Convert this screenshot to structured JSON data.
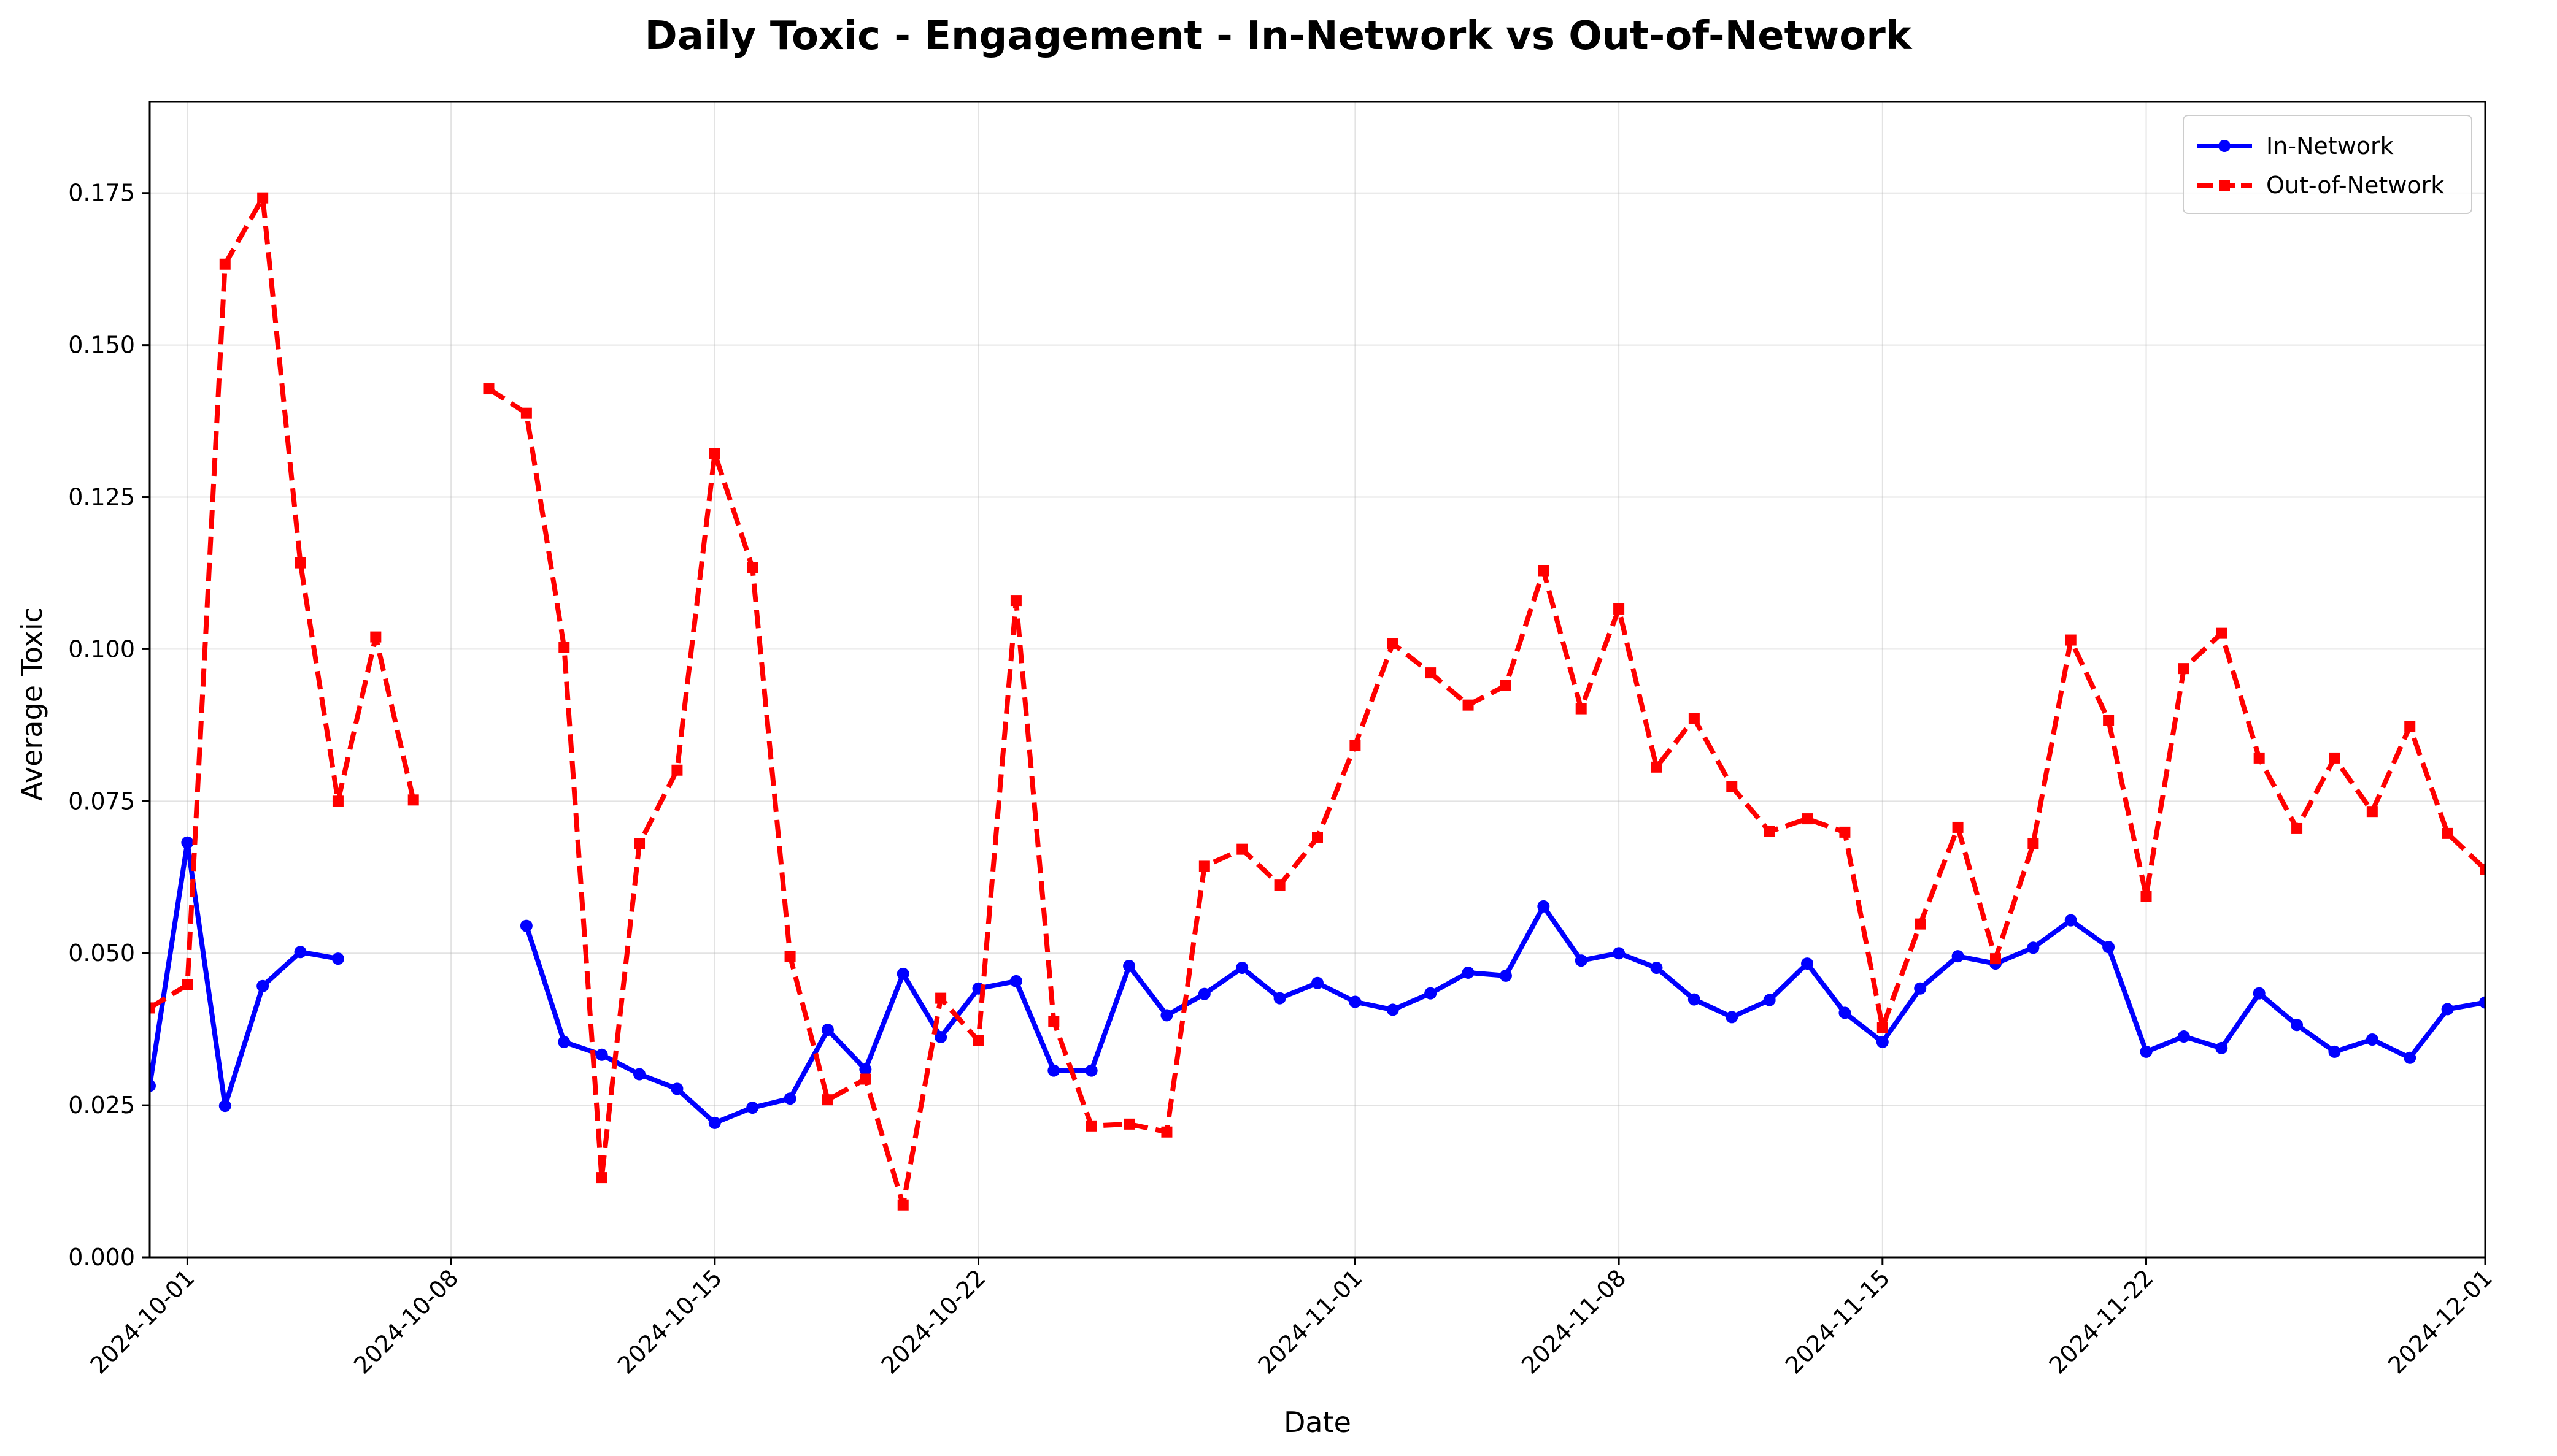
{
  "chart_data": {
    "type": "line",
    "title": "Daily Toxic - Engagement - In-Network vs Out-of-Network",
    "xlabel": "Date",
    "ylabel": "Average Toxic",
    "xlim": [
      "2024-09-30",
      "2024-12-01"
    ],
    "ylim": [
      0,
      0.19
    ],
    "grid": true,
    "legend_position": "top-right",
    "x_ticks": [
      "2024-10-01",
      "2024-10-08",
      "2024-10-15",
      "2024-10-22",
      "2024-11-01",
      "2024-11-08",
      "2024-11-15",
      "2024-11-22",
      "2024-12-01"
    ],
    "y_ticks": [
      "0.000",
      "0.025",
      "0.050",
      "0.075",
      "0.100",
      "0.125",
      "0.150",
      "0.175"
    ],
    "series": [
      {
        "name": "In-Network",
        "color": "#0000ff",
        "style": "solid",
        "marker": "circle",
        "points": [
          [
            "2024-09-30",
            0.0282
          ],
          [
            "2024-10-01",
            0.0682
          ],
          [
            "2024-10-02",
            0.0249
          ],
          [
            "2024-10-03",
            0.0446
          ],
          [
            "2024-10-04",
            0.0502
          ],
          [
            "2024-10-05",
            0.0491
          ],
          [
            "2024-10-10",
            0.0545
          ],
          [
            "2024-10-11",
            0.0354
          ],
          [
            "2024-10-12",
            0.0333
          ],
          [
            "2024-10-13",
            0.0301
          ],
          [
            "2024-10-14",
            0.0277
          ],
          [
            "2024-10-15",
            0.0221
          ],
          [
            "2024-10-16",
            0.0246
          ],
          [
            "2024-10-17",
            0.0261
          ],
          [
            "2024-10-18",
            0.0374
          ],
          [
            "2024-10-19",
            0.0309
          ],
          [
            "2024-10-20",
            0.0466
          ],
          [
            "2024-10-21",
            0.0362
          ],
          [
            "2024-10-22",
            0.0442
          ],
          [
            "2024-10-23",
            0.0454
          ],
          [
            "2024-10-24",
            0.0307
          ],
          [
            "2024-10-25",
            0.0307
          ],
          [
            "2024-10-26",
            0.0479
          ],
          [
            "2024-10-27",
            0.0398
          ],
          [
            "2024-10-28",
            0.0433
          ],
          [
            "2024-10-29",
            0.0476
          ],
          [
            "2024-10-30",
            0.0426
          ],
          [
            "2024-10-31",
            0.0451
          ],
          [
            "2024-11-01",
            0.042
          ],
          [
            "2024-11-02",
            0.0407
          ],
          [
            "2024-11-03",
            0.0434
          ],
          [
            "2024-11-04",
            0.0468
          ],
          [
            "2024-11-05",
            0.0463
          ],
          [
            "2024-11-06",
            0.0577
          ],
          [
            "2024-11-07",
            0.0488
          ],
          [
            "2024-11-08",
            0.05
          ],
          [
            "2024-11-09",
            0.0476
          ],
          [
            "2024-11-10",
            0.0424
          ],
          [
            "2024-11-11",
            0.0395
          ],
          [
            "2024-11-12",
            0.0423
          ],
          [
            "2024-11-13",
            0.0483
          ],
          [
            "2024-11-14",
            0.0402
          ],
          [
            "2024-11-15",
            0.0354
          ],
          [
            "2024-11-16",
            0.0442
          ],
          [
            "2024-11-17",
            0.0495
          ],
          [
            "2024-11-18",
            0.0483
          ],
          [
            "2024-11-19",
            0.0509
          ],
          [
            "2024-11-20",
            0.0554
          ],
          [
            "2024-11-21",
            0.051
          ],
          [
            "2024-11-22",
            0.0338
          ],
          [
            "2024-11-23",
            0.0363
          ],
          [
            "2024-11-24",
            0.0344
          ],
          [
            "2024-11-25",
            0.0434
          ],
          [
            "2024-11-26",
            0.0382
          ],
          [
            "2024-11-27",
            0.0338
          ],
          [
            "2024-11-28",
            0.0358
          ],
          [
            "2024-11-29",
            0.0328
          ],
          [
            "2024-11-30",
            0.0408
          ],
          [
            "2024-12-01",
            0.0419
          ]
        ]
      },
      {
        "name": "Out-of-Network",
        "color": "#ff0000",
        "style": "dashed",
        "marker": "square",
        "points": [
          [
            "2024-09-30",
            0.041
          ],
          [
            "2024-10-01",
            0.0448
          ],
          [
            "2024-10-02",
            0.1633
          ],
          [
            "2024-10-03",
            0.1742
          ],
          [
            "2024-10-04",
            0.1142
          ],
          [
            "2024-10-05",
            0.075
          ],
          [
            "2024-10-06",
            0.102
          ],
          [
            "2024-10-07",
            0.0752
          ],
          [
            "2024-10-09",
            0.1428
          ],
          [
            "2024-10-10",
            0.1388
          ],
          [
            "2024-10-11",
            0.1003
          ],
          [
            "2024-10-12",
            0.0131
          ],
          [
            "2024-10-13",
            0.068
          ],
          [
            "2024-10-14",
            0.0801
          ],
          [
            "2024-10-15",
            0.1322
          ],
          [
            "2024-10-16",
            0.1134
          ],
          [
            "2024-10-17",
            0.0495
          ],
          [
            "2024-10-18",
            0.0259
          ],
          [
            "2024-10-19",
            0.0293
          ],
          [
            "2024-10-20",
            0.0086
          ],
          [
            "2024-10-21",
            0.0426
          ],
          [
            "2024-10-22",
            0.0356
          ],
          [
            "2024-10-23",
            0.108
          ],
          [
            "2024-10-24",
            0.0388
          ],
          [
            "2024-10-25",
            0.0216
          ],
          [
            "2024-10-26",
            0.0219
          ],
          [
            "2024-10-27",
            0.0206
          ],
          [
            "2024-10-28",
            0.0643
          ],
          [
            "2024-10-29",
            0.0671
          ],
          [
            "2024-10-30",
            0.0612
          ],
          [
            "2024-10-31",
            0.069
          ],
          [
            "2024-11-01",
            0.0842
          ],
          [
            "2024-11-02",
            0.1009
          ],
          [
            "2024-11-03",
            0.0961
          ],
          [
            "2024-11-04",
            0.0908
          ],
          [
            "2024-11-05",
            0.094
          ],
          [
            "2024-11-06",
            0.1129
          ],
          [
            "2024-11-07",
            0.0902
          ],
          [
            "2024-11-08",
            0.1066
          ],
          [
            "2024-11-09",
            0.0806
          ],
          [
            "2024-11-10",
            0.0886
          ],
          [
            "2024-11-11",
            0.0774
          ],
          [
            "2024-11-12",
            0.07
          ],
          [
            "2024-11-13",
            0.0721
          ],
          [
            "2024-11-14",
            0.0699
          ],
          [
            "2024-11-15",
            0.0378
          ],
          [
            "2024-11-16",
            0.0548
          ],
          [
            "2024-11-17",
            0.0707
          ],
          [
            "2024-11-18",
            0.0491
          ],
          [
            "2024-11-19",
            0.068
          ],
          [
            "2024-11-20",
            0.1015
          ],
          [
            "2024-11-21",
            0.0883
          ],
          [
            "2024-11-22",
            0.0594
          ],
          [
            "2024-11-23",
            0.0968
          ],
          [
            "2024-11-24",
            0.1026
          ],
          [
            "2024-11-25",
            0.0821
          ],
          [
            "2024-11-26",
            0.0705
          ],
          [
            "2024-11-27",
            0.0821
          ],
          [
            "2024-11-28",
            0.0733
          ],
          [
            "2024-11-29",
            0.0873
          ],
          [
            "2024-11-30",
            0.0697
          ],
          [
            "2024-12-01",
            0.0638
          ]
        ]
      }
    ]
  }
}
